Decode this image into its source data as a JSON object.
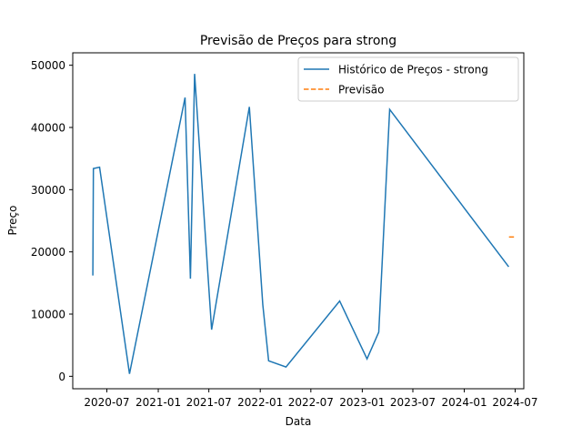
{
  "chart_data": {
    "type": "line",
    "title": "Previsão de Preços para strong",
    "xlabel": "Data",
    "ylabel": "Preço",
    "xlim": [
      "2020-03-01",
      "2024-08-01"
    ],
    "ylim": [
      -2000,
      52000
    ],
    "x_ticks": [
      {
        "date": "2020-07-01",
        "label": "2020-07"
      },
      {
        "date": "2021-01-01",
        "label": "2021-01"
      },
      {
        "date": "2021-07-01",
        "label": "2021-07"
      },
      {
        "date": "2022-01-01",
        "label": "2022-01"
      },
      {
        "date": "2022-07-01",
        "label": "2022-07"
      },
      {
        "date": "2023-01-01",
        "label": "2023-01"
      },
      {
        "date": "2023-07-01",
        "label": "2023-07"
      },
      {
        "date": "2024-01-01",
        "label": "2024-01"
      },
      {
        "date": "2024-07-01",
        "label": "2024-07"
      }
    ],
    "y_ticks": [
      0,
      10000,
      20000,
      30000,
      40000,
      50000
    ],
    "grid": false,
    "legend_position": "top-right",
    "series": [
      {
        "name": "Histórico de Preços - strong",
        "color": "#1f77b4",
        "style": "solid",
        "points": [
          {
            "x": "2020-05-12",
            "y": 16200
          },
          {
            "x": "2020-05-14",
            "y": 33400
          },
          {
            "x": "2020-06-05",
            "y": 33600
          },
          {
            "x": "2020-09-20",
            "y": 400
          },
          {
            "x": "2021-04-07",
            "y": 44800
          },
          {
            "x": "2021-04-26",
            "y": 15700
          },
          {
            "x": "2021-05-11",
            "y": 48600
          },
          {
            "x": "2021-07-11",
            "y": 7500
          },
          {
            "x": "2021-11-23",
            "y": 43300
          },
          {
            "x": "2022-01-10",
            "y": 11500
          },
          {
            "x": "2022-01-31",
            "y": 2500
          },
          {
            "x": "2022-04-03",
            "y": 1500
          },
          {
            "x": "2022-10-12",
            "y": 12100
          },
          {
            "x": "2023-01-18",
            "y": 2800
          },
          {
            "x": "2023-03-01",
            "y": 7100
          },
          {
            "x": "2023-04-09",
            "y": 42900
          },
          {
            "x": "2024-06-08",
            "y": 17600
          }
        ]
      },
      {
        "name": "Previsão",
        "color": "#ff7f0e",
        "style": "dashed",
        "points": [
          {
            "x": "2024-06-09",
            "y": 22400
          },
          {
            "x": "2024-06-30",
            "y": 22400
          }
        ]
      }
    ]
  }
}
